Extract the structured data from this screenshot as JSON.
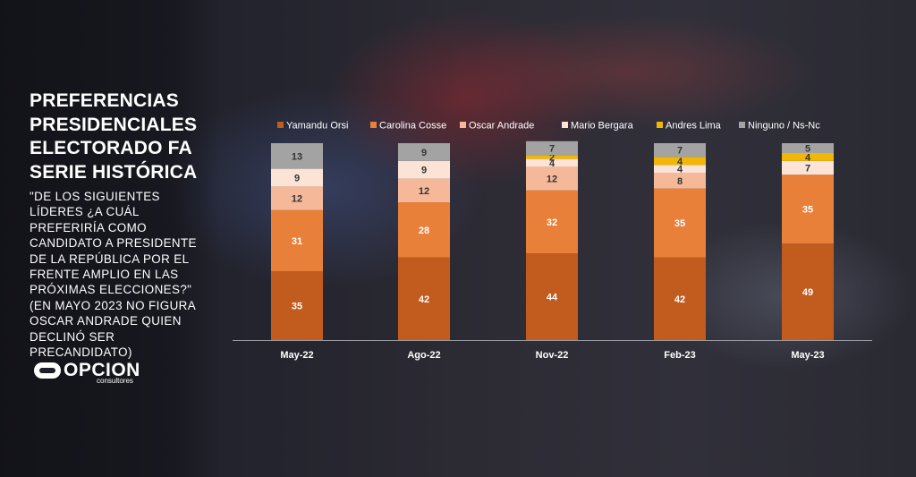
{
  "title": "PREFERENCIAS PRESIDENCIALES ELECTORADO FA SERIE HISTÓRICA",
  "question": "\"DE LOS SIGUIENTES LÍDERES ¿A CUÁL PREFERIRÍA COMO CANDIDATO A PRESIDENTE DE LA REPÚBLICA POR EL FRENTE AMPLIO EN LAS PRÓXIMAS ELECCIONES?\" (EN MAYO 2023 NO FIGURA OSCAR ANDRADE QUIEN DECLINÓ SER PRECANDIDATO)",
  "logo": {
    "word": "OPCION",
    "sub": "consultores"
  },
  "chart_data": {
    "type": "bar",
    "stacked": true,
    "categories": [
      "May-22",
      "Ago-22",
      "Nov-22",
      "Feb-23",
      "May-23"
    ],
    "series": [
      {
        "name": "Yamandu Orsi",
        "color": "#c25b1e",
        "values": [
          35,
          42,
          44,
          42,
          49
        ]
      },
      {
        "name": "Carolina Cosse",
        "color": "#e8803a",
        "values": [
          31,
          28,
          32,
          35,
          35
        ]
      },
      {
        "name": "Oscar Andrade",
        "color": "#f5b999",
        "values": [
          12,
          12,
          12,
          8,
          null
        ]
      },
      {
        "name": "Mario Bergara",
        "color": "#fbe3d6",
        "values": [
          9,
          9,
          4,
          4,
          7
        ]
      },
      {
        "name": "Andres Lima",
        "color": "#f2b705",
        "values": [
          null,
          null,
          2,
          4,
          4
        ]
      },
      {
        "name": "Ninguno / Ns-Nc",
        "color": "#a3a3a3",
        "values": [
          13,
          9,
          7,
          7,
          5
        ]
      }
    ],
    "legend_position": "top",
    "grid": false
  }
}
